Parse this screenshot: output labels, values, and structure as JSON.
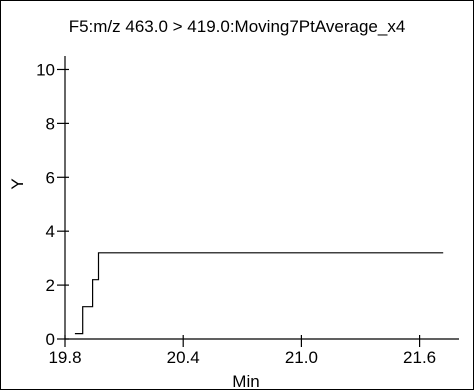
{
  "chart_data": {
    "type": "line",
    "title": "F5:m/z 463.0 > 419.0:Moving7PtAverage_x4",
    "xlabel": "Min",
    "ylabel": "Y",
    "xlim": [
      19.8,
      21.8
    ],
    "ylim": [
      0,
      10.5
    ],
    "xticks": [
      19.8,
      20.4,
      21.0,
      21.6
    ],
    "xtick_labels": [
      "19.8",
      "20.4",
      "21.0",
      "21.6"
    ],
    "yticks": [
      0,
      2,
      4,
      6,
      8,
      10
    ],
    "ytick_labels": [
      "0",
      "2",
      "4",
      "6",
      "8",
      "10"
    ],
    "grid": false,
    "series": [
      {
        "x": [
          19.85,
          19.89,
          19.89,
          19.94,
          19.94,
          19.97,
          19.97,
          19.99,
          19.99,
          21.72
        ],
        "y": [
          0.2,
          0.2,
          1.2,
          1.2,
          2.2,
          2.2,
          3.2,
          3.2,
          3.2,
          3.2
        ]
      }
    ]
  }
}
